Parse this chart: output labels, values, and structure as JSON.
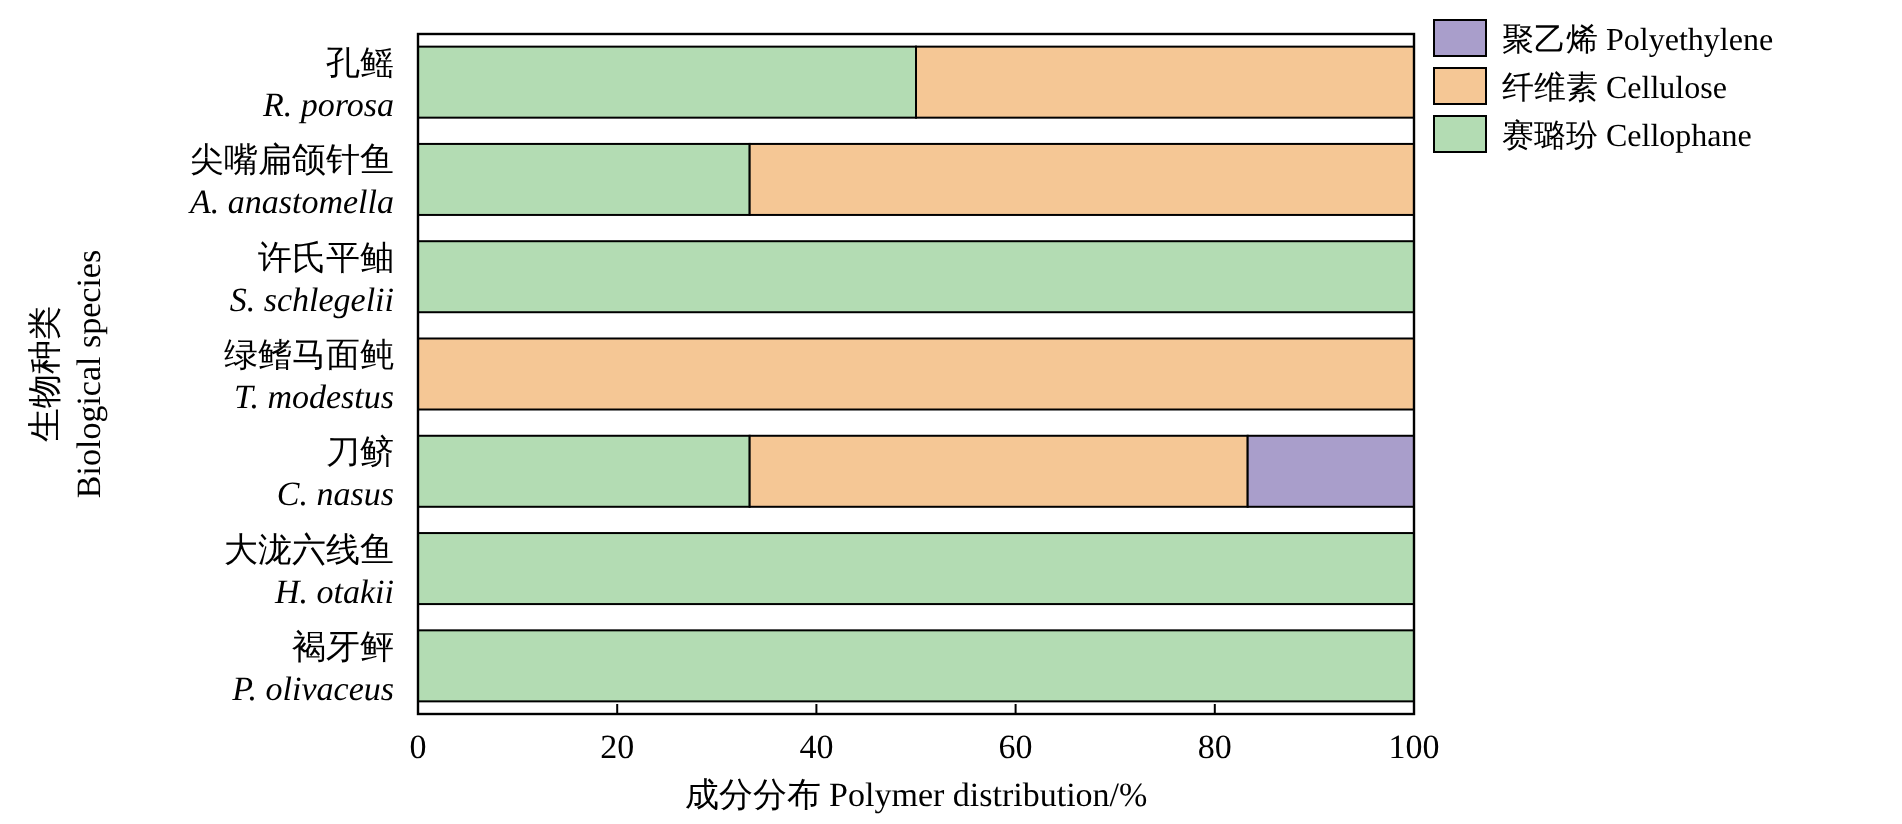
{
  "chart_data": {
    "type": "bar",
    "orientation": "horizontal",
    "stacked": true,
    "xlabel": "成分分布 Polymer distribution/%",
    "ylabel": "生物种类\nBiological species",
    "categories": [
      "孔鳐\nR. porosa",
      "尖嘴扁颌针鱼\nA. anastomella",
      "许氏平鲉\nS. schlegelii",
      "绿鳍马面鲀\nT. modestus",
      "刀鲚\nC. nasus",
      "大泷六线鱼\nH. otakii",
      "褐牙鲆\nP. olivaceus"
    ],
    "series": [
      {
        "name": "赛璐玢 Cellophane",
        "color": "#b3dcb3",
        "values": [
          50,
          33.3,
          100,
          0,
          33.3,
          100,
          100
        ]
      },
      {
        "name": "纤维素 Cellulose",
        "color": "#f5c795",
        "values": [
          50,
          66.7,
          0,
          100,
          50,
          0,
          0
        ]
      },
      {
        "name": "聚乙烯 Polyethylene",
        "color": "#a99ecb",
        "values": [
          0,
          0,
          0,
          0,
          16.7,
          0,
          0
        ]
      }
    ],
    "xlim": [
      0,
      100
    ],
    "xticks": [
      0,
      20,
      40,
      60,
      80,
      100
    ],
    "legend": "top right",
    "grid": false
  }
}
